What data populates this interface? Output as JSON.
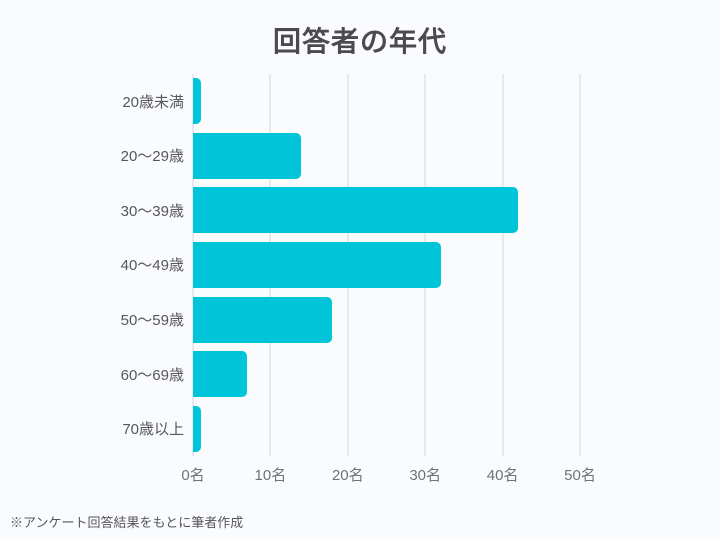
{
  "footnote": "※アンケート回答結果をもとに筆者作成",
  "colors": {
    "background": "#FAFBFC",
    "bar": "#00C5D8",
    "gridline": "#E8E9EB",
    "title_text": "#4B4B4E",
    "label_text": "#56575B",
    "tick_text": "#6F7277",
    "footnote_text": "#56575B"
  },
  "chart_data": {
    "type": "bar",
    "orientation": "horizontal",
    "title": "回答者の年代",
    "categories": [
      "20歳未満",
      "20〜29歳",
      "30〜39歳",
      "40〜49歳",
      "50〜59歳",
      "60〜69歳",
      "70歳以上"
    ],
    "values": [
      1,
      14,
      42,
      32,
      18,
      7,
      1
    ],
    "unit": "名",
    "x_ticks": [
      "0名",
      "10名",
      "20名",
      "30名",
      "40名",
      "50名"
    ],
    "x_tick_values": [
      0,
      10,
      20,
      30,
      40,
      50
    ],
    "xlim": [
      0,
      50
    ],
    "xlabel": "",
    "ylabel": "",
    "grid": true,
    "legend": false,
    "source_note": "※アンケート回答結果をもとに筆者作成"
  }
}
